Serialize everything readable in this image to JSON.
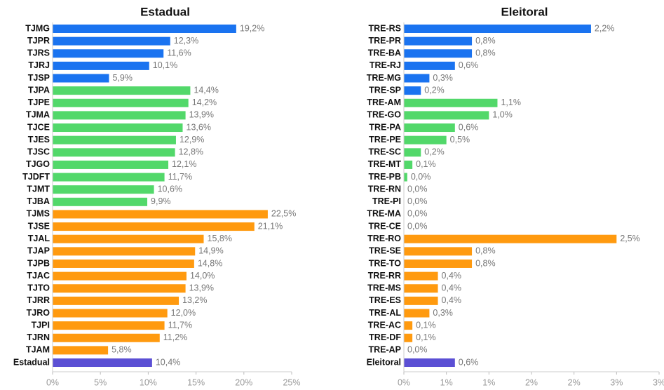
{
  "chart_data": [
    {
      "type": "bar",
      "orientation": "horizontal",
      "title": "Estadual",
      "categories": [
        "TJMG",
        "TJPR",
        "TJRS",
        "TJRJ",
        "TJSP",
        "TJPA",
        "TJPE",
        "TJMA",
        "TJCE",
        "TJES",
        "TJSC",
        "TJGO",
        "TJDFT",
        "TJMT",
        "TJBA",
        "TJMS",
        "TJSE",
        "TJAL",
        "TJAP",
        "TJPB",
        "TJAC",
        "TJTO",
        "TJRR",
        "TJRO",
        "TJPI",
        "TJRN",
        "TJAM",
        "Estadual"
      ],
      "values": [
        19.2,
        12.3,
        11.6,
        10.1,
        5.9,
        14.4,
        14.2,
        13.9,
        13.6,
        12.9,
        12.8,
        12.1,
        11.7,
        10.6,
        9.9,
        22.5,
        21.1,
        15.8,
        14.9,
        14.8,
        14.0,
        13.9,
        13.2,
        12.0,
        11.7,
        11.2,
        5.8,
        10.4
      ],
      "value_labels": [
        "19,2%",
        "12,3%",
        "11,6%",
        "10,1%",
        "5,9%",
        "14,4%",
        "14,2%",
        "13,9%",
        "13,6%",
        "12,9%",
        "12,8%",
        "12,1%",
        "11,7%",
        "10,6%",
        "9,9%",
        "22,5%",
        "21,1%",
        "15,8%",
        "14,9%",
        "14,8%",
        "14,0%",
        "13,9%",
        "13,2%",
        "12,0%",
        "11,7%",
        "11,2%",
        "5,8%",
        "10,4%"
      ],
      "colors": [
        "#1a73f0",
        "#1a73f0",
        "#1a73f0",
        "#1a73f0",
        "#1a73f0",
        "#52d86a",
        "#52d86a",
        "#52d86a",
        "#52d86a",
        "#52d86a",
        "#52d86a",
        "#52d86a",
        "#52d86a",
        "#52d86a",
        "#52d86a",
        "#ff9a0f",
        "#ff9a0f",
        "#ff9a0f",
        "#ff9a0f",
        "#ff9a0f",
        "#ff9a0f",
        "#ff9a0f",
        "#ff9a0f",
        "#ff9a0f",
        "#ff9a0f",
        "#ff9a0f",
        "#ff9a0f",
        "#5b4fd4"
      ],
      "xlim": [
        0,
        25
      ],
      "xticks": [
        {
          "value": 0,
          "label": "0%"
        },
        {
          "value": 5,
          "label": "5%"
        },
        {
          "value": 10,
          "label": "10%"
        },
        {
          "value": 15,
          "label": "15%"
        },
        {
          "value": 20,
          "label": "20%"
        },
        {
          "value": 25,
          "label": "25%"
        }
      ]
    },
    {
      "type": "bar",
      "orientation": "horizontal",
      "title": "Eleitoral",
      "categories": [
        "TRE-RS",
        "TRE-PR",
        "TRE-BA",
        "TRE-RJ",
        "TRE-MG",
        "TRE-SP",
        "TRE-AM",
        "TRE-GO",
        "TRE-PA",
        "TRE-PE",
        "TRE-SC",
        "TRE-MT",
        "TRE-PB",
        "TRE-RN",
        "TRE-PI",
        "TRE-MA",
        "TRE-CE",
        "TRE-RO",
        "TRE-SE",
        "TRE-TO",
        "TRE-RR",
        "TRE-MS",
        "TRE-ES",
        "TRE-AL",
        "TRE-AC",
        "TRE-DF",
        "TRE-AP",
        "Eleitoral"
      ],
      "values": [
        2.2,
        0.8,
        0.8,
        0.6,
        0.3,
        0.2,
        1.1,
        1.0,
        0.6,
        0.5,
        0.2,
        0.1,
        0.04,
        0,
        0,
        0,
        0,
        2.5,
        0.8,
        0.8,
        0.4,
        0.4,
        0.4,
        0.3,
        0.1,
        0.1,
        0,
        0.6
      ],
      "value_labels": [
        "2,2%",
        "0,8%",
        "0,8%",
        "0,6%",
        "0,3%",
        "0,2%",
        "1,1%",
        "1,0%",
        "0,6%",
        "0,5%",
        "0,2%",
        "0,1%",
        "0,0%",
        "0,0%",
        "0,0%",
        "0,0%",
        "0,0%",
        "2,5%",
        "0,8%",
        "0,8%",
        "0,4%",
        "0,4%",
        "0,4%",
        "0,3%",
        "0,1%",
        "0,1%",
        "0,0%",
        "0,6%"
      ],
      "colors": [
        "#1a73f0",
        "#1a73f0",
        "#1a73f0",
        "#1a73f0",
        "#1a73f0",
        "#1a73f0",
        "#52d86a",
        "#52d86a",
        "#52d86a",
        "#52d86a",
        "#52d86a",
        "#52d86a",
        "#52d86a",
        "#52d86a",
        "#52d86a",
        "#52d86a",
        "#52d86a",
        "#ff9a0f",
        "#ff9a0f",
        "#ff9a0f",
        "#ff9a0f",
        "#ff9a0f",
        "#ff9a0f",
        "#ff9a0f",
        "#ff9a0f",
        "#ff9a0f",
        "#ff9a0f",
        "#5b4fd4"
      ],
      "xlim": [
        0,
        3
      ],
      "xticks": [
        {
          "value": 0,
          "label": "0%"
        },
        {
          "value": 0.5,
          "label": "1%"
        },
        {
          "value": 1,
          "label": "1%"
        },
        {
          "value": 1.5,
          "label": "2%"
        },
        {
          "value": 2,
          "label": "2%"
        },
        {
          "value": 2.5,
          "label": "3%"
        },
        {
          "value": 3,
          "label": "3%"
        }
      ]
    }
  ]
}
